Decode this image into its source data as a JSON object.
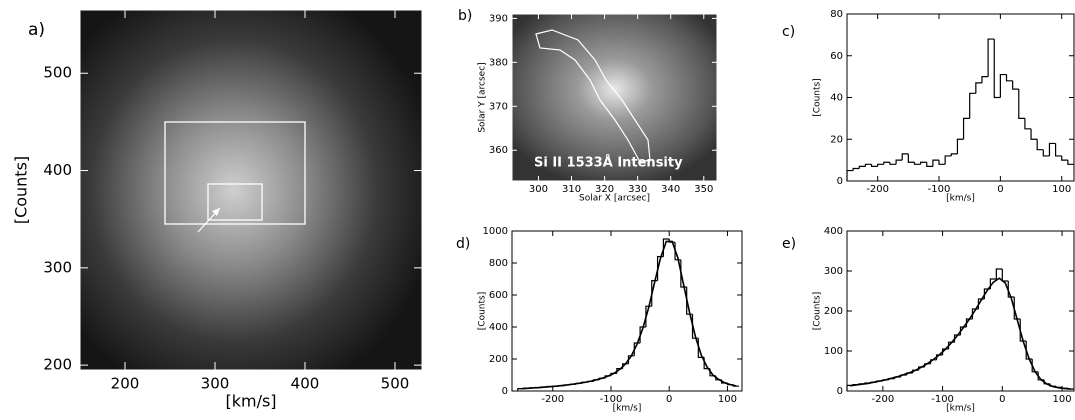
{
  "chart_data": [
    {
      "type": "image",
      "panel_label": "a)",
      "x_label": "[km/s]",
      "y_label": "[Counts]",
      "xlim": [
        150,
        530
      ],
      "xticks": [
        200,
        300,
        400,
        500
      ],
      "ylim": [
        195,
        565
      ],
      "yticks": [
        200,
        300,
        400,
        500
      ]
    },
    {
      "type": "image",
      "panel_label": "b)",
      "x_label": "Solar X [arcsec]",
      "y_label": "Solar Y [arcsec]",
      "annotation": "Si II 1533Å Intensity",
      "xlim": [
        292,
        354
      ],
      "xticks": [
        300,
        310,
        320,
        330,
        340,
        350
      ],
      "ylim": [
        353,
        391
      ],
      "yticks": [
        360,
        370,
        380,
        390
      ]
    },
    {
      "type": "histogram",
      "panel_label": "c)",
      "x_label": "[km/s]",
      "y_label": "[Counts]",
      "xlim": [
        -250,
        120
      ],
      "xticks": [
        -200,
        -100,
        0,
        100
      ],
      "ylim": [
        0,
        80
      ],
      "yticks": [
        0,
        20,
        40,
        60,
        80
      ],
      "bins": [
        -250,
        -240,
        -230,
        -220,
        -210,
        -200,
        -190,
        -180,
        -170,
        -160,
        -150,
        -140,
        -130,
        -120,
        -110,
        -100,
        -90,
        -80,
        -70,
        -60,
        -50,
        -40,
        -30,
        -20,
        -10,
        0,
        10,
        20,
        30,
        40,
        50,
        60,
        70,
        80,
        90,
        100,
        110,
        120
      ],
      "values": [
        5,
        6,
        7,
        8,
        7,
        8,
        9,
        8,
        10,
        13,
        9,
        8,
        9,
        7,
        10,
        8,
        12,
        13,
        20,
        30,
        42,
        47,
        50,
        68,
        40,
        51,
        48,
        44,
        30,
        25,
        20,
        15,
        12,
        18,
        12,
        10,
        8
      ]
    },
    {
      "type": "histogram",
      "panel_label": "d)",
      "x_label": "[km/s]",
      "y_label": "[Counts]",
      "xlim": [
        -270,
        125
      ],
      "xticks": [
        -200,
        -100,
        0,
        100
      ],
      "ylim": [
        0,
        1000
      ],
      "yticks": [
        0,
        200,
        400,
        600,
        800,
        1000
      ],
      "bins": [
        -260,
        -250,
        -240,
        -230,
        -220,
        -210,
        -200,
        -190,
        -180,
        -170,
        -160,
        -150,
        -140,
        -130,
        -120,
        -110,
        -100,
        -90,
        -80,
        -70,
        -60,
        -50,
        -40,
        -30,
        -20,
        -10,
        0,
        10,
        20,
        30,
        40,
        50,
        60,
        70,
        80,
        90,
        100,
        110,
        120
      ],
      "values": [
        15,
        18,
        20,
        22,
        25,
        28,
        30,
        33,
        38,
        42,
        48,
        55,
        60,
        70,
        80,
        95,
        110,
        140,
        170,
        220,
        300,
        400,
        530,
        690,
        840,
        950,
        930,
        820,
        650,
        480,
        330,
        210,
        140,
        95,
        70,
        50,
        40,
        30
      ],
      "fit": [
        14,
        16,
        19,
        21,
        24,
        27,
        30,
        34,
        38,
        43,
        48,
        54,
        61,
        70,
        80,
        93,
        110,
        135,
        170,
        220,
        295,
        395,
        525,
        680,
        830,
        935,
        935,
        830,
        660,
        490,
        340,
        225,
        150,
        100,
        72,
        52,
        40,
        32
      ]
    },
    {
      "type": "histogram",
      "panel_label": "e)",
      "x_label": "[km/s]",
      "y_label": "[Counts]",
      "xlim": [
        -260,
        120
      ],
      "xticks": [
        -200,
        -100,
        0,
        100
      ],
      "ylim": [
        0,
        400
      ],
      "yticks": [
        0,
        100,
        200,
        300,
        400
      ],
      "bins": [
        -260,
        -250,
        -240,
        -230,
        -220,
        -210,
        -200,
        -190,
        -180,
        -170,
        -160,
        -150,
        -140,
        -130,
        -120,
        -110,
        -100,
        -90,
        -80,
        -70,
        -60,
        -50,
        -40,
        -30,
        -20,
        -10,
        0,
        10,
        20,
        30,
        40,
        50,
        60,
        70,
        80,
        90,
        100,
        110,
        120
      ],
      "values": [
        14,
        16,
        18,
        20,
        22,
        25,
        28,
        31,
        35,
        40,
        45,
        52,
        60,
        68,
        78,
        90,
        105,
        122,
        140,
        160,
        180,
        205,
        230,
        255,
        280,
        305,
        275,
        235,
        180,
        125,
        80,
        48,
        28,
        18,
        12,
        9,
        7,
        5
      ],
      "fit": [
        13,
        15,
        17,
        19,
        22,
        25,
        28,
        32,
        36,
        41,
        46,
        52,
        60,
        69,
        79,
        91,
        105,
        121,
        139,
        159,
        180,
        203,
        228,
        252,
        272,
        282,
        270,
        232,
        178,
        124,
        80,
        48,
        28,
        17,
        11,
        8,
        6,
        5
      ]
    }
  ]
}
